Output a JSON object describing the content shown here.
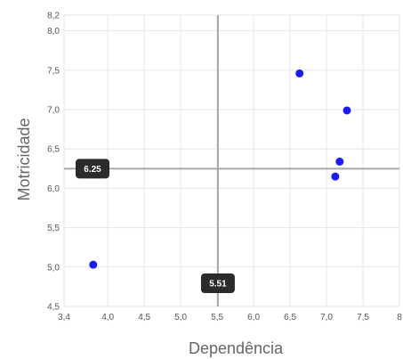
{
  "chart_data": {
    "type": "scatter",
    "xlabel": "Dependência",
    "ylabel": "Motricidade",
    "xlim": [
      3.4,
      8.0
    ],
    "ylim": [
      4.5,
      8.2
    ],
    "x_ticks": [
      3.4,
      4.0,
      4.5,
      5.0,
      5.5,
      6.0,
      6.5,
      7.0,
      7.5,
      8.0
    ],
    "x_tick_labels": [
      "3,4",
      "4,0",
      "4,5",
      "5,0",
      "5,5",
      "6,0",
      "6,5",
      "7,0",
      "7,5",
      "8"
    ],
    "y_ticks": [
      4.5,
      5.0,
      5.5,
      6.0,
      6.5,
      7.0,
      7.5,
      8.0,
      8.2
    ],
    "y_tick_labels": [
      "4,5",
      "5,0",
      "5,5",
      "6,0",
      "6,5",
      "7,0",
      "7,5",
      "8,0",
      "8,2"
    ],
    "points": [
      {
        "x": 3.8,
        "y": 5.03
      },
      {
        "x": 6.63,
        "y": 7.46
      },
      {
        "x": 7.28,
        "y": 6.99
      },
      {
        "x": 7.18,
        "y": 6.34
      },
      {
        "x": 7.12,
        "y": 6.15
      }
    ],
    "reference_lines": {
      "x": {
        "value": 5.51,
        "label": "5.51"
      },
      "y": {
        "value": 6.25,
        "label": "6.25"
      }
    },
    "grid": true,
    "colors": {
      "point": "#1a1aff",
      "grid": "#e6e6e6",
      "reference_line": "#a8a8a8",
      "badge": "#2b2b2b"
    }
  }
}
